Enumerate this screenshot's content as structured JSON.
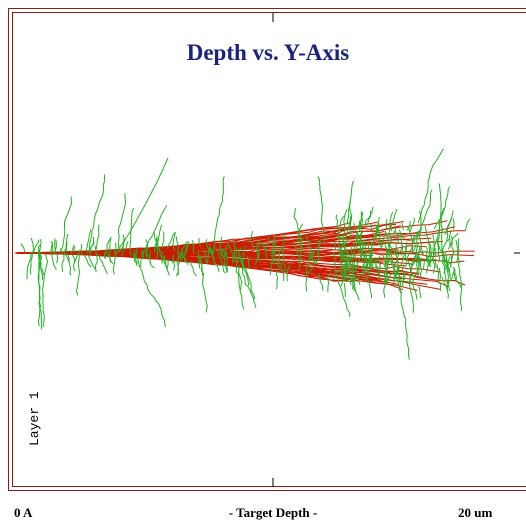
{
  "window": {
    "title": "Depth vs. Y-Axis",
    "layer_label": "Layer 1",
    "x_start_label": "0 A",
    "x_axis_label": "- Target Depth -",
    "x_end_label": "20 um"
  }
}
